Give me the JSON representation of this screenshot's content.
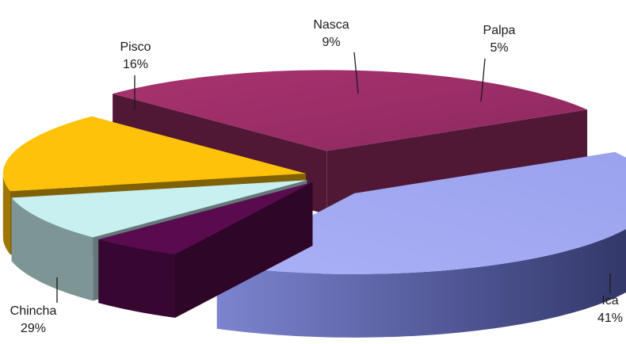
{
  "chart_data": {
    "type": "pie",
    "title": "",
    "slices": [
      {
        "label": "Ica",
        "value": 41,
        "percent_label": "41%",
        "color": "#9fa6f1"
      },
      {
        "label": "Palpa",
        "value": 5,
        "percent_label": "5%",
        "color": "#5a0b4f"
      },
      {
        "label": "Nasca",
        "value": 9,
        "percent_label": "9%",
        "color": "#c9f0f1"
      },
      {
        "label": "Pisco",
        "value": 16,
        "percent_label": "16%",
        "color": "#ffc20a"
      },
      {
        "label": "Chincha",
        "value": 29,
        "percent_label": "29%",
        "color": "#a1306b"
      }
    ],
    "style": "3d-exploded",
    "legend": "none"
  }
}
